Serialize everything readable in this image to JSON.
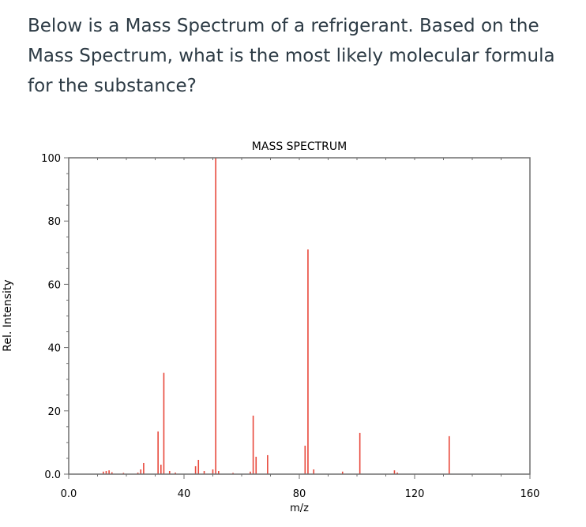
{
  "question": {
    "text": "Below is a Mass Spectrum of a refrigerant. Based on the Mass Spectrum, what is the most likely molecular formula for the substance?"
  },
  "chart_data": {
    "type": "bar",
    "title": "MASS SPECTRUM",
    "xlabel": "m/z",
    "ylabel": "Rel. Intensity",
    "xlim": [
      0,
      160
    ],
    "ylim": [
      0,
      100
    ],
    "xticks": [
      0,
      40,
      80,
      120,
      160
    ],
    "xtick_labels": [
      "0.0",
      "40",
      "80",
      "120",
      "160"
    ],
    "yticks": [
      0,
      20,
      40,
      60,
      80,
      100
    ],
    "ytick_labels": [
      "0.0",
      "20",
      "40",
      "60",
      "80",
      "100"
    ],
    "grid": false,
    "bar_color": "#e8483b",
    "x": [
      12,
      13,
      14,
      15,
      19,
      24,
      25,
      26,
      31,
      32,
      33,
      35,
      37,
      44,
      45,
      47,
      50,
      51,
      52,
      57,
      63,
      64,
      65,
      69,
      82,
      83,
      85,
      95,
      101,
      113,
      114,
      132
    ],
    "values": [
      0.8,
      1.0,
      1.2,
      0.6,
      0.4,
      0.5,
      1.5,
      3.5,
      13.5,
      3.0,
      32.0,
      1.0,
      0.5,
      2.5,
      4.5,
      1.0,
      1.5,
      100.0,
      1.0,
      0.4,
      0.8,
      18.5,
      5.5,
      6.0,
      9.0,
      71.0,
      1.5,
      0.8,
      13.0,
      1.2,
      0.5,
      12.0
    ]
  }
}
